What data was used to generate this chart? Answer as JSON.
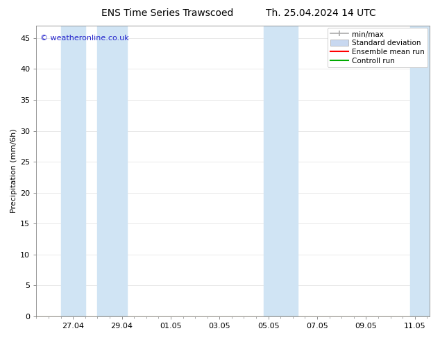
{
  "title_left": "ENS Time Series Trawscoed",
  "title_right": "Th. 25.04.2024 14 UTC",
  "ylabel": "Precipitation (mm/6h)",
  "ylim": [
    0,
    47
  ],
  "yticks": [
    0,
    5,
    10,
    15,
    20,
    25,
    30,
    35,
    40,
    45
  ],
  "xlabel_ticks": [
    "27.04",
    "29.04",
    "01.05",
    "03.05",
    "05.05",
    "07.05",
    "09.05",
    "11.05"
  ],
  "copyright_text": "© weatheronline.co.uk",
  "legend_labels": [
    "min/max",
    "Standard deviation",
    "Ensemble mean run",
    "Controll run"
  ],
  "legend_colors_hex": [
    "#aaaaaa",
    "#c8d8f0",
    "#ff0000",
    "#00aa00"
  ],
  "bg_color": "#ffffff",
  "plot_bg_color": "#ffffff",
  "light_blue": "#d0e4f4",
  "shaded_regions": [
    [
      1.5,
      2.5
    ],
    [
      3.0,
      4.2
    ],
    [
      9.8,
      11.2
    ],
    [
      15.8,
      16.6
    ]
  ],
  "x_min": 0.5,
  "x_max": 16.6,
  "tick_positions": [
    2,
    4,
    6,
    8,
    10,
    12,
    14,
    16
  ],
  "grid_color": "#e0e0e0",
  "font_size_title": 10,
  "font_size_tick": 8,
  "font_size_copyright": 8,
  "font_size_legend": 7.5,
  "font_size_ylabel": 8
}
